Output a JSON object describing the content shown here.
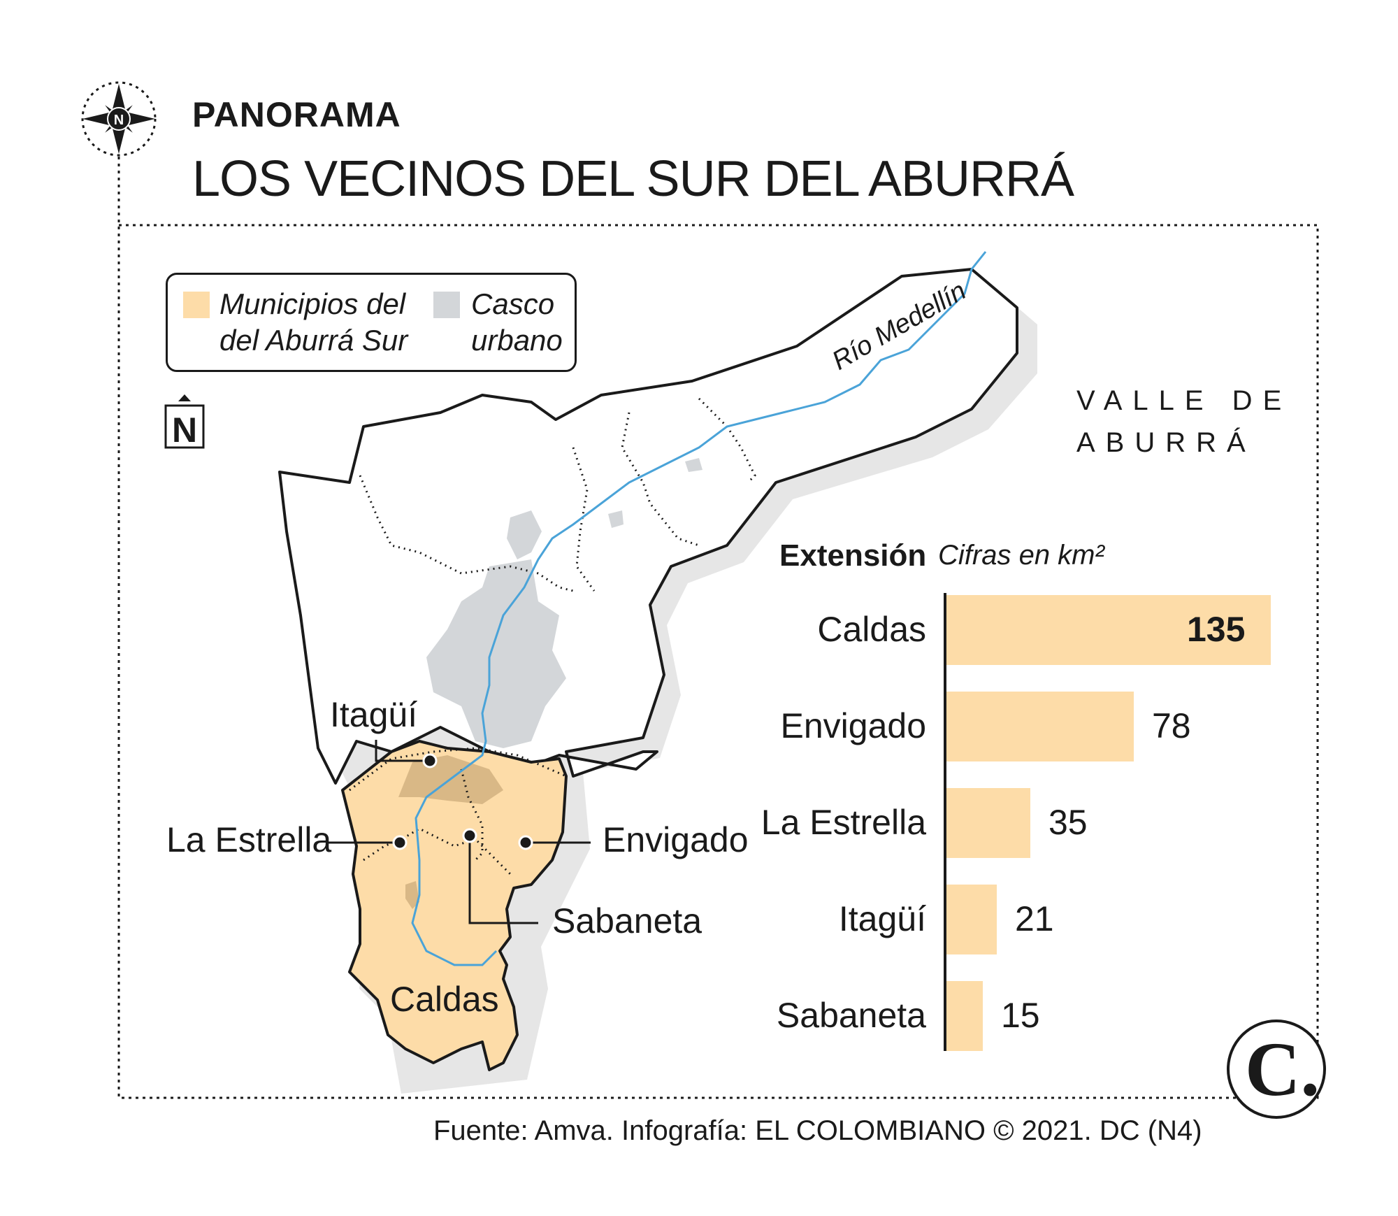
{
  "header": {
    "kicker": "PANORAMA",
    "title": "LOS VECINOS DEL SUR DEL ABURRÁ"
  },
  "legend": {
    "items": [
      {
        "label": "Municipios del\ndel Aburrá Sur",
        "color": "#fddca8"
      },
      {
        "label": "Casco\nurbano",
        "color": "#d3d6d9"
      }
    ]
  },
  "map": {
    "north_label": "N",
    "river_label": "Río Medellín",
    "region_label": "VALLE DE\nABURRÁ",
    "municipalities": [
      "Itagüí",
      "La Estrella",
      "Envigado",
      "Sabaneta",
      "Caldas"
    ],
    "colors": {
      "municipio": "#fddca8",
      "urbano": "#d3d6d9",
      "urbano_sur": "#d9b886",
      "river": "#4aa3d8",
      "outline": "#1a1a1a"
    }
  },
  "chart": {
    "title": "Extensión",
    "subtitle": "Cifras en km²"
  },
  "chart_data": {
    "type": "bar",
    "orientation": "horizontal",
    "title": "Extensión",
    "subtitle": "Cifras en km²",
    "categories": [
      "Caldas",
      "Envigado",
      "La Estrella",
      "Itagüí",
      "Sabaneta"
    ],
    "values": [
      135,
      78,
      35,
      21,
      15
    ],
    "value_labels": [
      "135",
      "78",
      "35",
      "21",
      "15"
    ],
    "xlim": [
      0,
      135
    ],
    "bar_color": "#fddca8",
    "grid": false
  },
  "source": "Fuente: Amva. Infografía: EL COLOMBIANO © 2021. DC (N4)",
  "logo": "C."
}
